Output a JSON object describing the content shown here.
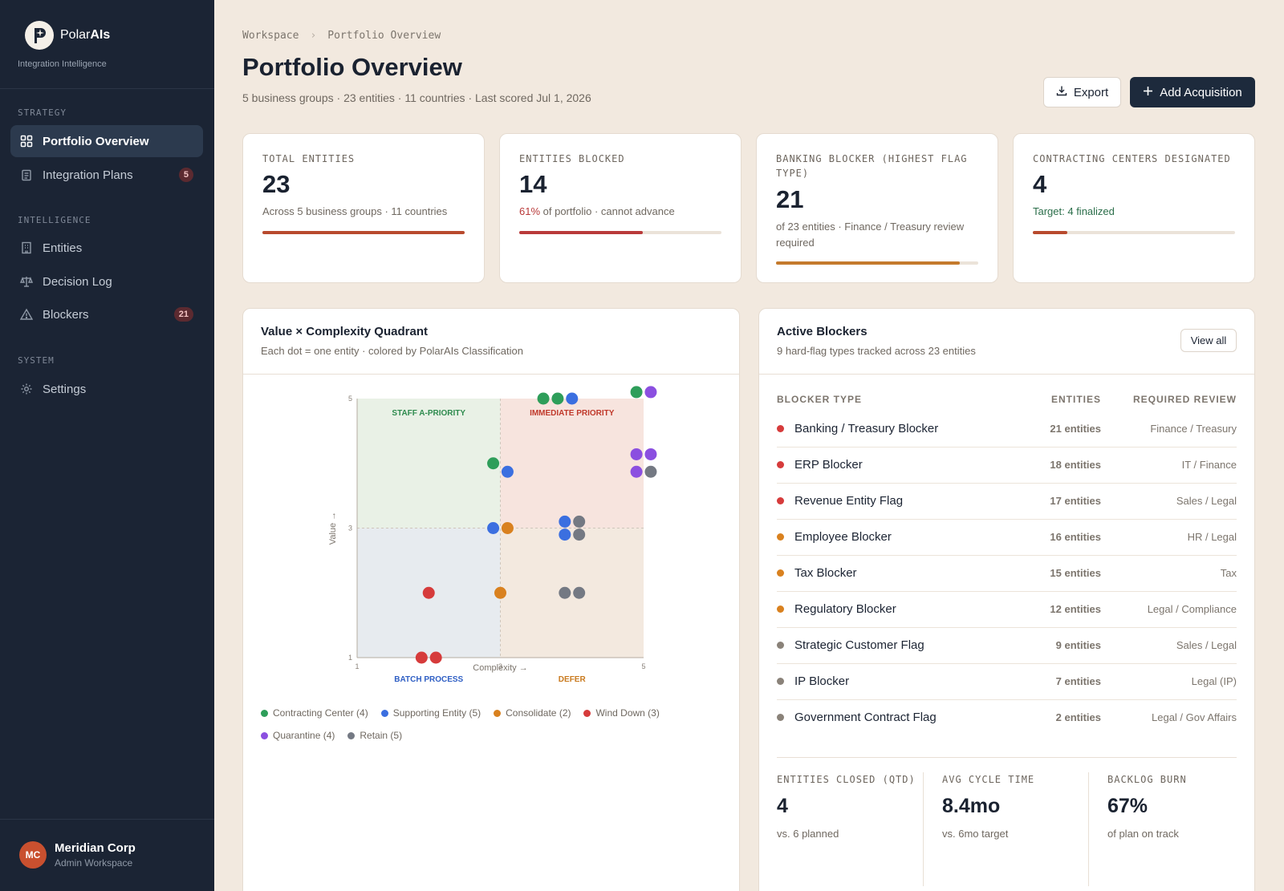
{
  "brand": {
    "name_plain": "Polar",
    "name_bold": "AIs",
    "tagline": "Integration Intelligence"
  },
  "sidebar": {
    "sections": [
      {
        "label": "STRATEGY"
      },
      {
        "label": "INTELLIGENCE"
      },
      {
        "label": "SYSTEM"
      }
    ],
    "items": [
      {
        "label": "Portfolio Overview",
        "icon": "grid-icon",
        "active": true
      },
      {
        "label": "Integration Plans",
        "icon": "clipboard-icon",
        "badge": "5"
      },
      {
        "label": "Entities",
        "icon": "building-icon"
      },
      {
        "label": "Decision Log",
        "icon": "scale-icon"
      },
      {
        "label": "Blockers",
        "icon": "warning-icon",
        "badge": "21"
      },
      {
        "label": "Settings",
        "icon": "gear-icon"
      }
    ],
    "user": {
      "initials": "MC",
      "name": "Meridian Corp",
      "role": "Admin Workspace"
    }
  },
  "header": {
    "breadcrumb": [
      "Workspace",
      "Portfolio Overview"
    ],
    "breadcrumb_sep": "›",
    "title": "Portfolio Overview",
    "subtitle": "5 business groups · 23 entities · 11 countries · Last scored Jul 1, 2026",
    "export_label": "Export",
    "add_label": "Add Acquisition"
  },
  "stats": [
    {
      "label": "TOTAL ENTITIES",
      "value": "23",
      "desc": "Across 5 business groups · 11 countries",
      "progress": 1.0,
      "color": "#b84a2e"
    },
    {
      "label": "ENTITIES BLOCKED",
      "value": "14",
      "desc_highlight": "61%",
      "desc": " of portfolio · cannot advance",
      "progress": 0.61,
      "color": "#b93a3a"
    },
    {
      "label": "BANKING BLOCKER (HIGHEST FLAG TYPE)",
      "value": "21",
      "desc": "of 23 entities · Finance / Treasury review required",
      "progress": 0.91,
      "color": "#c47a2c"
    },
    {
      "label": "CONTRACTING CENTERS DESIGNATED",
      "value": "4",
      "desc": "Target: 4 finalized",
      "progress": 0.17,
      "color": "#b84a2e"
    }
  ],
  "quadrant": {
    "title": "Value × Complexity Quadrant",
    "subtitle": "Each dot = one entity · colored by PolarAIs Classification",
    "legend": [
      {
        "label": "Contracting Center (4)",
        "color": "#2e9e5a"
      },
      {
        "label": "Supporting Entity (5)",
        "color": "#3b6fe0"
      },
      {
        "label": "Consolidate (2)",
        "color": "#d9811f"
      },
      {
        "label": "Wind Down (3)",
        "color": "#d63b3b"
      },
      {
        "label": "Quarantine (4)",
        "color": "#8b4fe0"
      },
      {
        "label": "Retain (5)",
        "color": "#747983"
      }
    ]
  },
  "chart_data": {
    "type": "scatter",
    "xlabel": "Complexity →",
    "ylabel": "Value →",
    "xlim": [
      1,
      5
    ],
    "ylim": [
      1,
      5
    ],
    "xticks": [
      "1",
      "3",
      "5"
    ],
    "yticks": [
      "1",
      "3",
      "5"
    ],
    "grid": "dashed midlines at 3",
    "quadrant_labels": [
      {
        "label": "STAFF A-PRIORITY",
        "color": "#2e8b4e",
        "fill": "#e9f1e6",
        "position": "top-left"
      },
      {
        "label": "IMMEDIATE PRIORITY",
        "color": "#c0392b",
        "fill": "#f7e4de",
        "position": "top-right"
      },
      {
        "label": "BATCH PROCESS",
        "color": "#2f5fc4",
        "fill": "#e7ebef",
        "position": "bottom-left"
      },
      {
        "label": "DEFER",
        "color": "#c97a1e",
        "fill": "#f3e9df",
        "position": "bottom-right"
      }
    ],
    "series": [
      {
        "name": "Contracting Center (4)",
        "color": "#2e9e5a",
        "points": [
          [
            3.6,
            5.0
          ],
          [
            3.8,
            5.0
          ],
          [
            4.9,
            5.1
          ],
          [
            2.9,
            4.0
          ]
        ]
      },
      {
        "name": "Supporting Entity (5)",
        "color": "#3b6fe0",
        "points": [
          [
            4.0,
            5.0
          ],
          [
            3.1,
            3.87
          ],
          [
            2.9,
            3.0
          ],
          [
            3.9,
            3.1
          ],
          [
            3.9,
            2.9
          ]
        ]
      },
      {
        "name": "Consolidate (2)",
        "color": "#d9811f",
        "points": [
          [
            3.1,
            3.0
          ],
          [
            3.0,
            2.0
          ]
        ]
      },
      {
        "name": "Wind Down (3)",
        "color": "#d63b3b",
        "points": [
          [
            2.0,
            2.0
          ],
          [
            1.9,
            1.0
          ],
          [
            2.1,
            1.0
          ]
        ]
      },
      {
        "name": "Quarantine (4)",
        "color": "#8b4fe0",
        "points": [
          [
            5.1,
            5.1
          ],
          [
            4.9,
            4.14
          ],
          [
            5.1,
            4.14
          ],
          [
            4.9,
            3.87
          ]
        ]
      },
      {
        "name": "Retain (5)",
        "color": "#747983",
        "points": [
          [
            5.1,
            3.87
          ],
          [
            4.1,
            3.1
          ],
          [
            4.1,
            2.9
          ],
          [
            3.9,
            2.0
          ],
          [
            4.1,
            2.0
          ]
        ]
      }
    ]
  },
  "blockers": {
    "title": "Active Blockers",
    "subtitle": "9 hard-flag types tracked across 23 entities",
    "view_all": "View all",
    "columns": [
      "BLOCKER TYPE",
      "ENTITIES",
      "REQUIRED REVIEW"
    ],
    "rows": [
      {
        "name": "Banking / Treasury Blocker",
        "count": "21 entities",
        "review": "Finance / Treasury",
        "color": "#d63b3b"
      },
      {
        "name": "ERP Blocker",
        "count": "18 entities",
        "review": "IT / Finance",
        "color": "#d63b3b"
      },
      {
        "name": "Revenue Entity Flag",
        "count": "17 entities",
        "review": "Sales / Legal",
        "color": "#d63b3b"
      },
      {
        "name": "Employee Blocker",
        "count": "16 entities",
        "review": "HR / Legal",
        "color": "#d9811f"
      },
      {
        "name": "Tax Blocker",
        "count": "15 entities",
        "review": "Tax",
        "color": "#d9811f"
      },
      {
        "name": "Regulatory Blocker",
        "count": "12 entities",
        "review": "Legal / Compliance",
        "color": "#d9811f"
      },
      {
        "name": "Strategic Customer Flag",
        "count": "9 entities",
        "review": "Sales / Legal",
        "color": "#8a8279"
      },
      {
        "name": "IP Blocker",
        "count": "7 entities",
        "review": "Legal (IP)",
        "color": "#8a8279"
      },
      {
        "name": "Government Contract Flag",
        "count": "2 entities",
        "review": "Legal / Gov Affairs",
        "color": "#8a8279"
      }
    ],
    "kpis": [
      {
        "label": "ENTITIES CLOSED (QTD)",
        "value": "4",
        "desc": "vs. 6 planned"
      },
      {
        "label": "AVG CYCLE TIME",
        "value": "8.4mo",
        "desc": "vs. 6mo target"
      },
      {
        "label": "BACKLOG BURN",
        "value": "67%",
        "desc": "of plan on track"
      }
    ]
  }
}
